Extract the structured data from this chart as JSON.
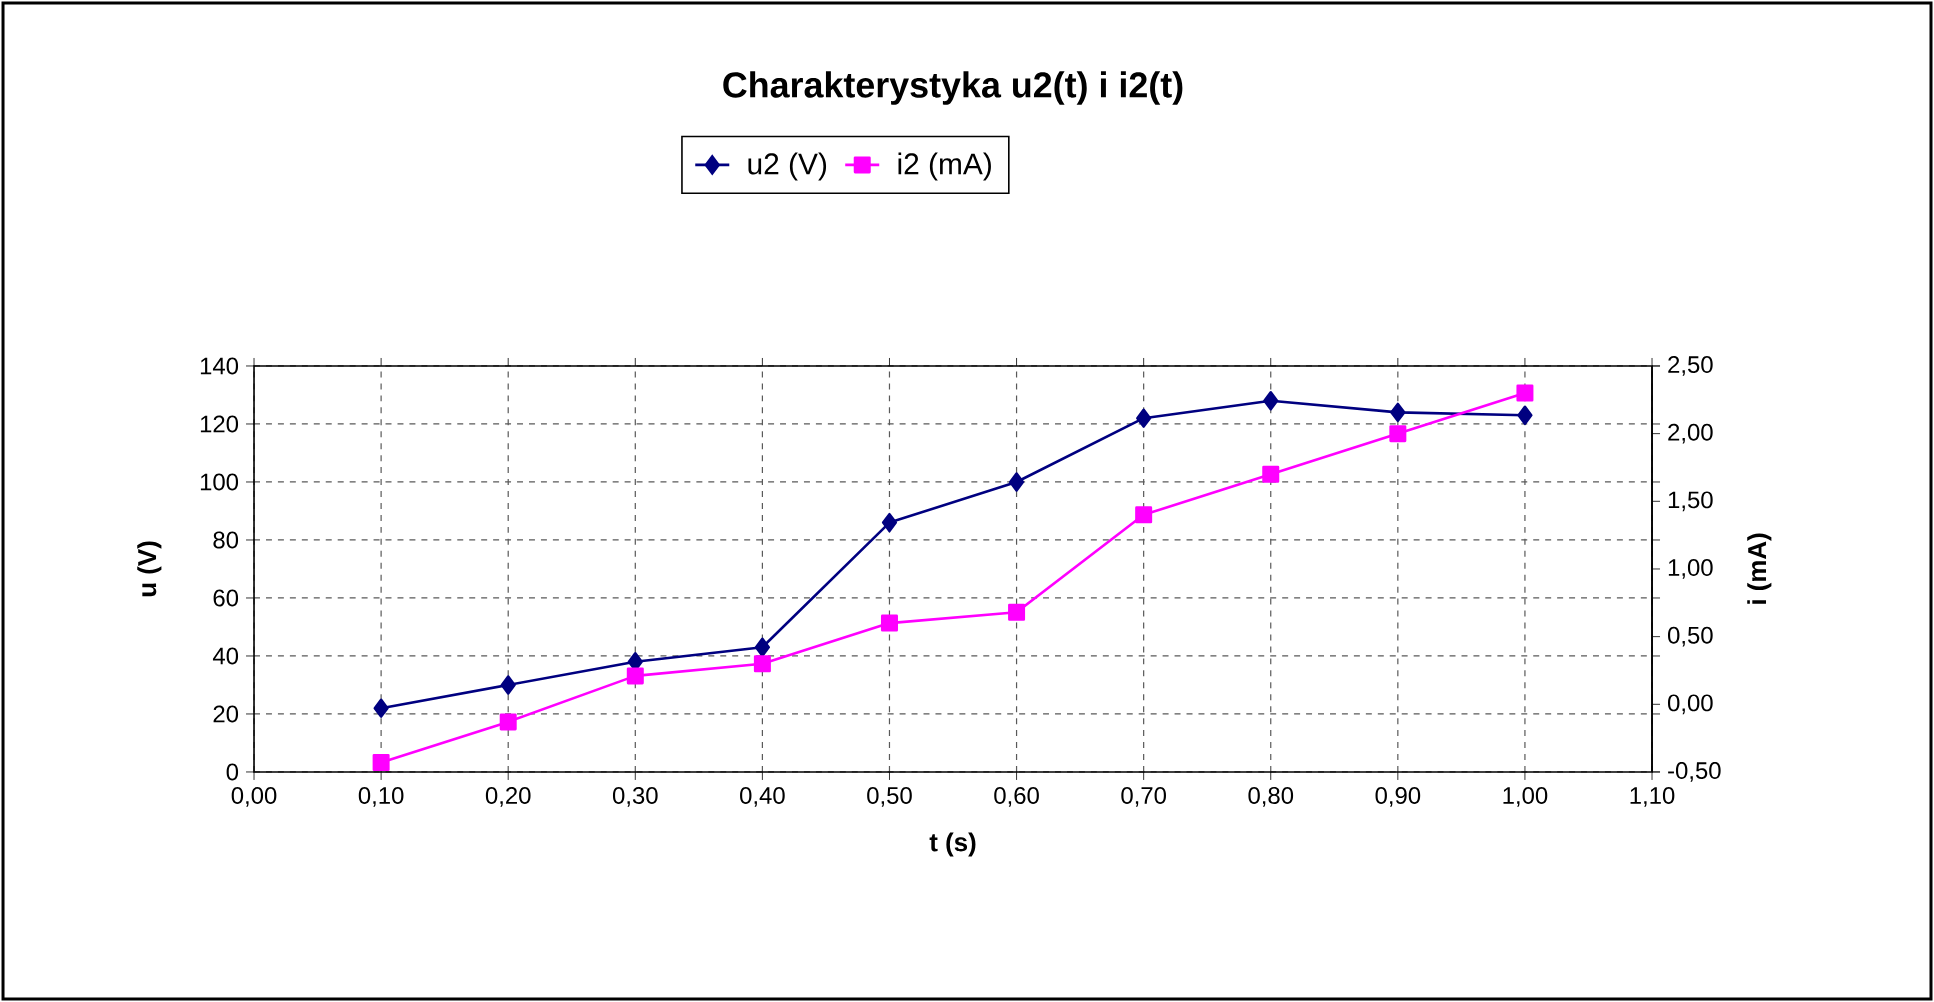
{
  "chart_data": {
    "type": "line",
    "title": "Charakterystyka u2(t) i i2(t)",
    "xlabel": "t (s)",
    "ylabel": "u (V)",
    "y2label": "i (mA)",
    "x": [
      0.1,
      0.2,
      0.3,
      0.4,
      0.5,
      0.6,
      0.7,
      0.8,
      0.9,
      1.0
    ],
    "series": [
      {
        "name": "u2 (V)",
        "color": "#000080",
        "marker": "diamond",
        "axis": "y",
        "values": [
          22,
          30,
          38,
          43,
          86,
          100,
          122,
          128,
          124,
          123
        ]
      },
      {
        "name": "i2 (mA)",
        "color": "#ff00ff",
        "marker": "square",
        "axis": "y2",
        "values": [
          -0.43,
          -0.13,
          0.21,
          0.3,
          0.6,
          0.68,
          1.4,
          1.7,
          2.0,
          2.3
        ]
      }
    ],
    "xlim": [
      0,
      1.1
    ],
    "xticks": [
      {
        "value": 0,
        "label": "0,00"
      },
      {
        "value": 0.1,
        "label": "0,10"
      },
      {
        "value": 0.2,
        "label": "0,20"
      },
      {
        "value": 0.3,
        "label": "0,30"
      },
      {
        "value": 0.4,
        "label": "0,40"
      },
      {
        "value": 0.5,
        "label": "0,50"
      },
      {
        "value": 0.6,
        "label": "0,60"
      },
      {
        "value": 0.7,
        "label": "0,70"
      },
      {
        "value": 0.8,
        "label": "0,80"
      },
      {
        "value": 0.9,
        "label": "0,90"
      },
      {
        "value": 1.0,
        "label": "1,00"
      },
      {
        "value": 1.1,
        "label": "1,10"
      }
    ],
    "ylim": [
      0,
      140
    ],
    "yticks": [
      0,
      20,
      40,
      60,
      80,
      100,
      120,
      140
    ],
    "y2lim": [
      -0.5,
      2.5
    ],
    "y2ticks": [
      {
        "value": -0.5,
        "label": "-0,50"
      },
      {
        "value": 0,
        "label": "0,00"
      },
      {
        "value": 0.5,
        "label": "0,50"
      },
      {
        "value": 1.0,
        "label": "1,00"
      },
      {
        "value": 1.5,
        "label": "1,50"
      },
      {
        "value": 2.0,
        "label": "2,00"
      },
      {
        "value": 2.5,
        "label": "2,50"
      }
    ],
    "grid": true,
    "legend": "top",
    "line_style": "solid"
  }
}
